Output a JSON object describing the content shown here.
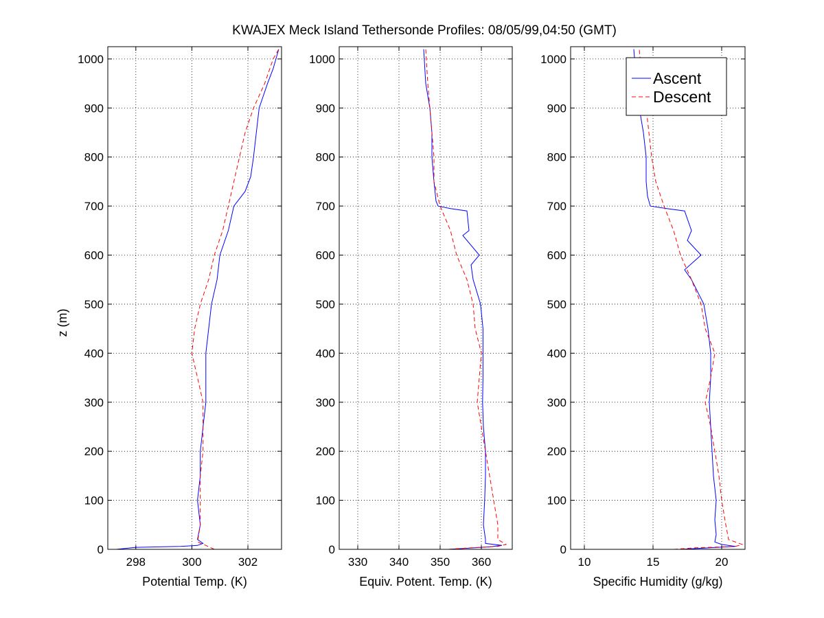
{
  "chart_data": {
    "type": "line",
    "title": "KWAJEX Meck Island Tethersonde Profiles: 08/05/99,04:50 (GMT)",
    "ylabel": "z (m)",
    "grid": true,
    "legend": {
      "placement": "top-right",
      "panel": 2,
      "entries": [
        {
          "name": "Ascent",
          "color": "#0000ff",
          "style": "solid"
        },
        {
          "name": "Descent",
          "color": "#ff0000",
          "style": "dashed"
        }
      ]
    },
    "panels": [
      {
        "xlabel": "Potential Temp. (K)",
        "xlim": [
          297.0,
          303.2
        ],
        "ylim": [
          0,
          1025
        ],
        "xticks": [
          298,
          300,
          302
        ],
        "yticks": [
          0,
          100,
          200,
          300,
          400,
          500,
          600,
          700,
          800,
          900,
          1000
        ],
        "series": [
          {
            "name": "Ascent",
            "color": "#0000ff",
            "dashed": false,
            "points": [
              [
                297.3,
                0
              ],
              [
                298.0,
                4
              ],
              [
                299.6,
                6
              ],
              [
                300.2,
                8
              ],
              [
                300.4,
                12
              ],
              [
                300.2,
                20
              ],
              [
                300.3,
                50
              ],
              [
                300.2,
                100
              ],
              [
                300.3,
                150
              ],
              [
                300.3,
                200
              ],
              [
                300.4,
                250
              ],
              [
                300.5,
                300
              ],
              [
                300.5,
                350
              ],
              [
                300.5,
                400
              ],
              [
                300.6,
                450
              ],
              [
                300.7,
                500
              ],
              [
                300.9,
                550
              ],
              [
                301.0,
                600
              ],
              [
                301.3,
                650
              ],
              [
                301.5,
                700
              ],
              [
                301.9,
                730
              ],
              [
                302.1,
                760
              ],
              [
                302.2,
                800
              ],
              [
                302.3,
                850
              ],
              [
                302.4,
                900
              ],
              [
                302.7,
                950
              ],
              [
                302.9,
                980
              ],
              [
                303.1,
                1020
              ]
            ]
          },
          {
            "name": "Descent",
            "color": "#ff0000",
            "dashed": true,
            "points": [
              [
                300.8,
                0
              ],
              [
                300.5,
                8
              ],
              [
                300.2,
                15
              ],
              [
                300.3,
                50
              ],
              [
                300.3,
                100
              ],
              [
                300.3,
                150
              ],
              [
                300.4,
                200
              ],
              [
                300.4,
                250
              ],
              [
                300.4,
                300
              ],
              [
                300.2,
                350
              ],
              [
                300.0,
                400
              ],
              [
                300.1,
                450
              ],
              [
                300.3,
                500
              ],
              [
                300.6,
                550
              ],
              [
                300.8,
                600
              ],
              [
                301.1,
                650
              ],
              [
                301.3,
                700
              ],
              [
                301.5,
                750
              ],
              [
                301.7,
                800
              ],
              [
                301.9,
                850
              ],
              [
                302.2,
                900
              ],
              [
                302.6,
                950
              ],
              [
                302.9,
                1000
              ],
              [
                303.1,
                1020
              ]
            ]
          }
        ]
      },
      {
        "xlabel": "Equiv. Potent. Temp. (K)",
        "xlim": [
          325.5,
          367.5
        ],
        "ylim": [
          0,
          1025
        ],
        "xticks": [
          330,
          340,
          350,
          360
        ],
        "yticks": [
          0,
          100,
          200,
          300,
          400,
          500,
          600,
          700,
          800,
          900,
          1000
        ],
        "series": [
          {
            "name": "Ascent",
            "color": "#0000ff",
            "dashed": false,
            "points": [
              [
                352.0,
                0
              ],
              [
                358.0,
                3
              ],
              [
                362.0,
                5
              ],
              [
                365.0,
                8
              ],
              [
                361.0,
                12
              ],
              [
                361.0,
                20
              ],
              [
                360.5,
                50
              ],
              [
                360.8,
                100
              ],
              [
                361.0,
                150
              ],
              [
                361.0,
                200
              ],
              [
                360.5,
                250
              ],
              [
                360.3,
                300
              ],
              [
                360.4,
                350
              ],
              [
                360.4,
                400
              ],
              [
                360.4,
                450
              ],
              [
                359.8,
                500
              ],
              [
                358.0,
                550
              ],
              [
                357.5,
                580
              ],
              [
                359.5,
                600
              ],
              [
                355.5,
                640
              ],
              [
                357.0,
                650
              ],
              [
                356.5,
                690
              ],
              [
                352.5,
                695
              ],
              [
                349.5,
                700
              ],
              [
                349.0,
                710
              ],
              [
                348.5,
                750
              ],
              [
                348.0,
                800
              ],
              [
                348.0,
                850
              ],
              [
                347.5,
                900
              ],
              [
                346.5,
                950
              ],
              [
                346.0,
                1020
              ]
            ]
          },
          {
            "name": "Descent",
            "color": "#ff0000",
            "dashed": true,
            "points": [
              [
                352.0,
                0
              ],
              [
                357.0,
                3
              ],
              [
                364.0,
                6
              ],
              [
                366.0,
                10
              ],
              [
                364.0,
                20
              ],
              [
                364.0,
                50
              ],
              [
                363.0,
                100
              ],
              [
                362.0,
                150
              ],
              [
                361.0,
                200
              ],
              [
                360.0,
                250
              ],
              [
                359.0,
                300
              ],
              [
                359.5,
                350
              ],
              [
                360.0,
                400
              ],
              [
                358.5,
                450
              ],
              [
                358.0,
                500
              ],
              [
                356.5,
                550
              ],
              [
                354.0,
                600
              ],
              [
                352.5,
                650
              ],
              [
                350.0,
                700
              ],
              [
                348.5,
                750
              ],
              [
                348.5,
                800
              ],
              [
                348.0,
                850
              ],
              [
                347.5,
                900
              ],
              [
                347.0,
                950
              ],
              [
                346.5,
                1020
              ]
            ]
          }
        ]
      },
      {
        "xlabel": "Specific Humidity (g/kg)",
        "xlim": [
          9.0,
          21.7
        ],
        "ylim": [
          0,
          1025
        ],
        "xticks": [
          10,
          15,
          20
        ],
        "yticks": [
          0,
          100,
          200,
          300,
          400,
          500,
          600,
          700,
          800,
          900,
          1000
        ],
        "series": [
          {
            "name": "Ascent",
            "color": "#0000ff",
            "dashed": false,
            "points": [
              [
                17.0,
                0
              ],
              [
                19.0,
                3
              ],
              [
                21.0,
                6
              ],
              [
                20.0,
                10
              ],
              [
                19.5,
                15
              ],
              [
                19.6,
                30
              ],
              [
                19.5,
                60
              ],
              [
                19.6,
                100
              ],
              [
                19.4,
                150
              ],
              [
                19.3,
                200
              ],
              [
                19.2,
                250
              ],
              [
                19.1,
                300
              ],
              [
                19.2,
                350
              ],
              [
                19.2,
                400
              ],
              [
                19.0,
                450
              ],
              [
                18.7,
                500
              ],
              [
                17.8,
                550
              ],
              [
                17.3,
                570
              ],
              [
                18.5,
                600
              ],
              [
                17.5,
                630
              ],
              [
                17.8,
                650
              ],
              [
                17.3,
                690
              ],
              [
                16.0,
                695
              ],
              [
                14.8,
                700
              ],
              [
                14.6,
                720
              ],
              [
                14.5,
                750
              ],
              [
                14.5,
                800
              ],
              [
                14.3,
                850
              ],
              [
                14.0,
                900
              ],
              [
                13.8,
                950
              ],
              [
                13.6,
                1020
              ]
            ]
          },
          {
            "name": "Descent",
            "color": "#ff0000",
            "dashed": true,
            "points": [
              [
                16.5,
                0
              ],
              [
                18.0,
                3
              ],
              [
                21.0,
                6
              ],
              [
                21.5,
                10
              ],
              [
                20.5,
                20
              ],
              [
                20.3,
                50
              ],
              [
                20.0,
                100
              ],
              [
                19.8,
                150
              ],
              [
                19.5,
                200
              ],
              [
                19.2,
                250
              ],
              [
                18.8,
                300
              ],
              [
                19.2,
                350
              ],
              [
                19.5,
                400
              ],
              [
                18.8,
                450
              ],
              [
                18.5,
                500
              ],
              [
                17.8,
                550
              ],
              [
                17.0,
                600
              ],
              [
                16.5,
                650
              ],
              [
                15.8,
                700
              ],
              [
                15.2,
                750
              ],
              [
                14.9,
                800
              ],
              [
                14.7,
                850
              ],
              [
                14.5,
                900
              ],
              [
                14.2,
                950
              ],
              [
                14.0,
                1020
              ]
            ]
          }
        ]
      }
    ]
  }
}
